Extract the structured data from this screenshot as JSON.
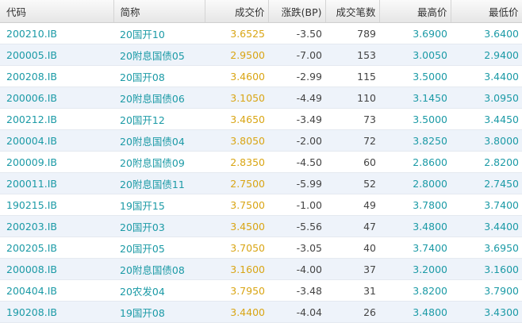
{
  "table": {
    "columns": [
      "代码",
      "简称",
      "成交价",
      "涨跌(BP)",
      "成交笔数",
      "最高价",
      "最低价"
    ],
    "rows": [
      [
        "200210.IB",
        "20国开10",
        "3.6525",
        "-3.50",
        "789",
        "3.6900",
        "3.6400"
      ],
      [
        "200005.IB",
        "20附息国债05",
        "2.9500",
        "-7.00",
        "153",
        "3.0050",
        "2.9400"
      ],
      [
        "200208.IB",
        "20国开08",
        "3.4600",
        "-2.99",
        "115",
        "3.5000",
        "3.4400"
      ],
      [
        "200006.IB",
        "20附息国债06",
        "3.1050",
        "-4.49",
        "110",
        "3.1450",
        "3.0950"
      ],
      [
        "200212.IB",
        "20国开12",
        "3.4650",
        "-3.49",
        "73",
        "3.5000",
        "3.4450"
      ],
      [
        "200004.IB",
        "20附息国债04",
        "3.8050",
        "-2.00",
        "72",
        "3.8250",
        "3.8000"
      ],
      [
        "200009.IB",
        "20附息国债09",
        "2.8350",
        "-4.50",
        "60",
        "2.8600",
        "2.8200"
      ],
      [
        "200011.IB",
        "20附息国债11",
        "2.7500",
        "-5.99",
        "52",
        "2.8000",
        "2.7450"
      ],
      [
        "190215.IB",
        "19国开15",
        "3.7500",
        "-1.00",
        "49",
        "3.7800",
        "3.7400"
      ],
      [
        "200203.IB",
        "20国开03",
        "3.4500",
        "-5.56",
        "47",
        "3.4800",
        "3.4400"
      ],
      [
        "200205.IB",
        "20国开05",
        "3.7050",
        "-3.05",
        "40",
        "3.7400",
        "3.6950"
      ],
      [
        "200008.IB",
        "20附息国债08",
        "3.1600",
        "-4.00",
        "37",
        "3.2000",
        "3.1600"
      ],
      [
        "200404.IB",
        "20农发04",
        "3.7950",
        "-3.48",
        "31",
        "3.8200",
        "3.7900"
      ],
      [
        "190208.IB",
        "19国开08",
        "3.4400",
        "-4.04",
        "26",
        "3.4800",
        "3.4300"
      ]
    ]
  }
}
